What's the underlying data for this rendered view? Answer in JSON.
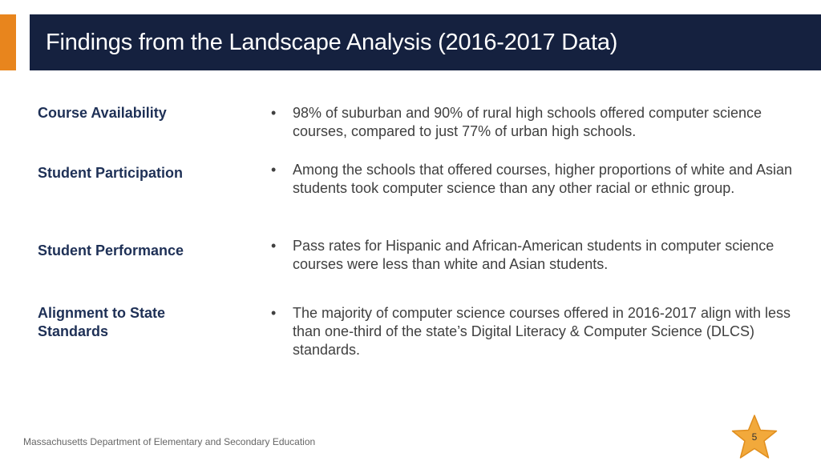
{
  "header": {
    "title": "Findings from the Landscape Analysis (2016-2017 Data)"
  },
  "findings": [
    {
      "label": "Course Availability",
      "bullet": "•",
      "text": "98% of suburban and 90% of rural high schools offered computer science courses, compared to just 77% of urban high schools."
    },
    {
      "label": "Student Participation",
      "bullet": "•",
      "text": "Among the schools that offered courses, higher proportions of white and Asian students took computer science than any other racial or ethnic group."
    },
    {
      "label": "Student Performance",
      "bullet": "•",
      "text": "Pass rates for Hispanic and African-American students in computer science courses were less than white and Asian students."
    },
    {
      "label": "Alignment to State Standards",
      "bullet": "•",
      "text": "The majority of computer science courses offered in 2016-2017 align with less than one-third of the state’s Digital Literacy & Computer Science (DLCS) standards."
    }
  ],
  "footer": {
    "organization": "Massachusetts Department of Elementary and Secondary Education",
    "page_number": "5"
  },
  "colors": {
    "accent": "#E8851D",
    "title_bar": "#15213F",
    "label": "#1E3056",
    "body_text": "#404040",
    "star": "#F2A93B"
  }
}
